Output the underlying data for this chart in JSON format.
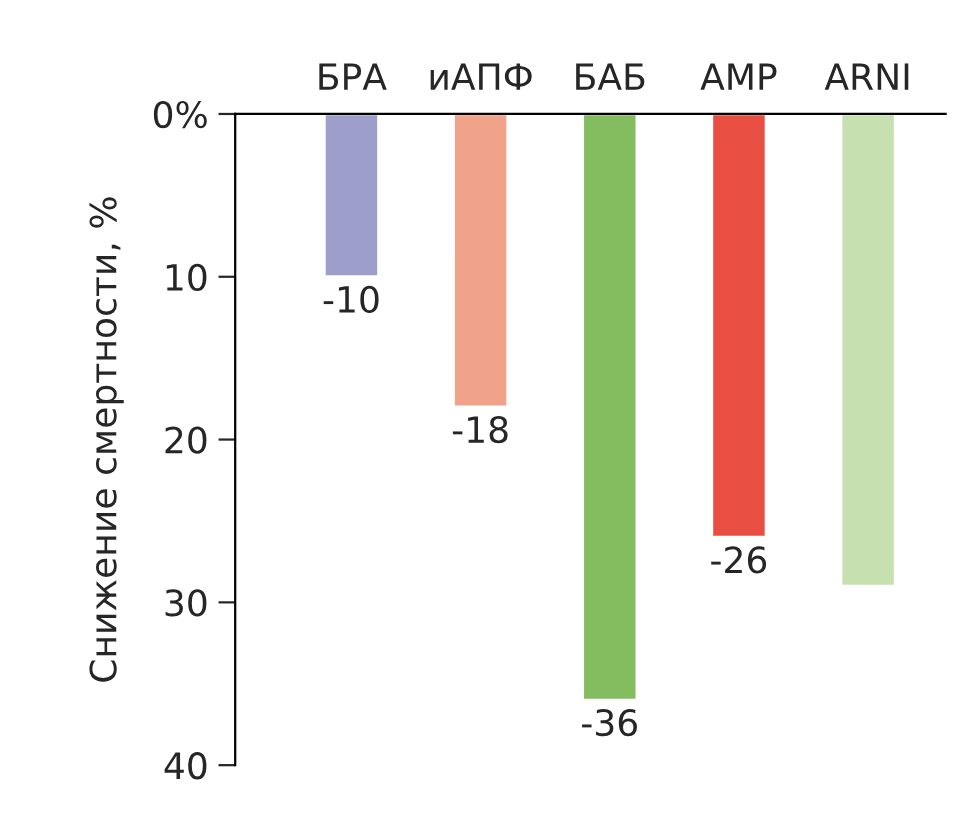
{
  "chart_data": {
    "type": "bar",
    "ylabel": "Снижение смертности, %",
    "categories": [
      "БРА",
      "иАПФ",
      "БАБ",
      "АМР",
      "ARNI"
    ],
    "values": [
      -10,
      -18,
      -36,
      -26,
      -29
    ],
    "colors": [
      "#9e9ecb",
      "#f1a28b",
      "#84bd5f",
      "#e84e42",
      "#c6e0b0"
    ],
    "value_labels": [
      "-10",
      "-18",
      "-36",
      "-26",
      null
    ],
    "ylim": [
      -40,
      0
    ],
    "yticks": [
      {
        "value": 0,
        "label": "0%"
      },
      {
        "value": -10,
        "label": "10"
      },
      {
        "value": -20,
        "label": "20"
      },
      {
        "value": -30,
        "label": "30"
      },
      {
        "value": -40,
        "label": "40"
      }
    ],
    "grid": false,
    "legend": false
  }
}
